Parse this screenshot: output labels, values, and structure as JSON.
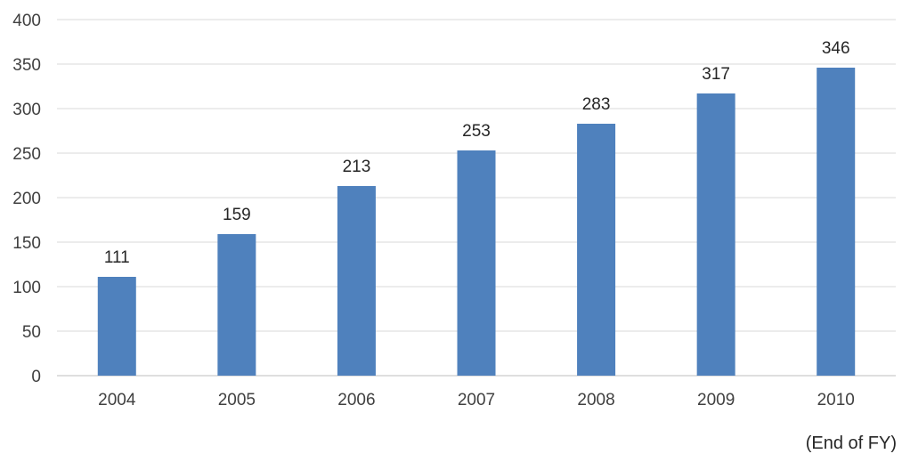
{
  "chart_data": {
    "type": "bar",
    "categories": [
      "2004",
      "2005",
      "2006",
      "2007",
      "2008",
      "2009",
      "2010"
    ],
    "values": [
      111,
      159,
      213,
      253,
      283,
      317,
      346
    ],
    "title": "",
    "xlabel": "",
    "ylabel": "",
    "ylim": [
      0,
      400
    ],
    "yticks": [
      "0",
      "50",
      "100",
      "150",
      "200",
      "250",
      "300",
      "350",
      "400"
    ],
    "grid": true,
    "bar_color": "#4f81bd",
    "grid_color": "#d9d9d9",
    "note": "(End of FY)"
  }
}
